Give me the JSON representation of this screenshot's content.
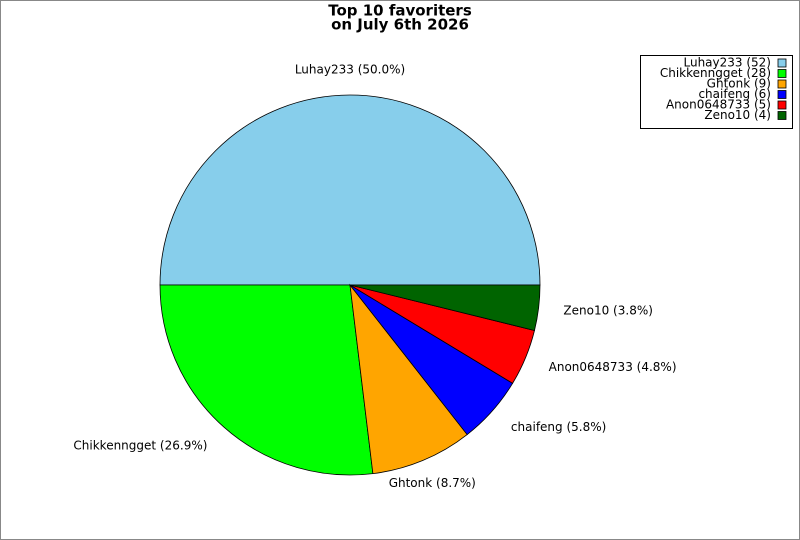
{
  "chart_data": {
    "type": "pie",
    "title": "Top 10 favoriters",
    "subtitle": "on July 6th 2026",
    "categories": [
      "Luhay233",
      "Chikkenngget",
      "Ghtonk",
      "chaifeng",
      "Anon0648733",
      "Zeno10"
    ],
    "values": [
      52,
      28,
      9,
      6,
      5,
      4
    ],
    "value_labels": [
      "Luhay233 (50.0%)",
      "Chikkenngget (26.9%)",
      "Ghtonk (8.7%)",
      "chaifeng (5.8%)",
      "Anon0648733 (4.8%)",
      "Zeno10 (3.8%)"
    ],
    "legend_labels": [
      "Luhay233 (52)",
      "Chikkenngget (28)",
      "Ghtonk (9)",
      "chaifeng (6)",
      "Anon0648733 (5)",
      "Zeno10 (4)"
    ],
    "colors": [
      "#87ceeb",
      "#00ff00",
      "#ffa500",
      "#0000ff",
      "#ff0000",
      "#006400"
    ],
    "legend": "top-right"
  }
}
